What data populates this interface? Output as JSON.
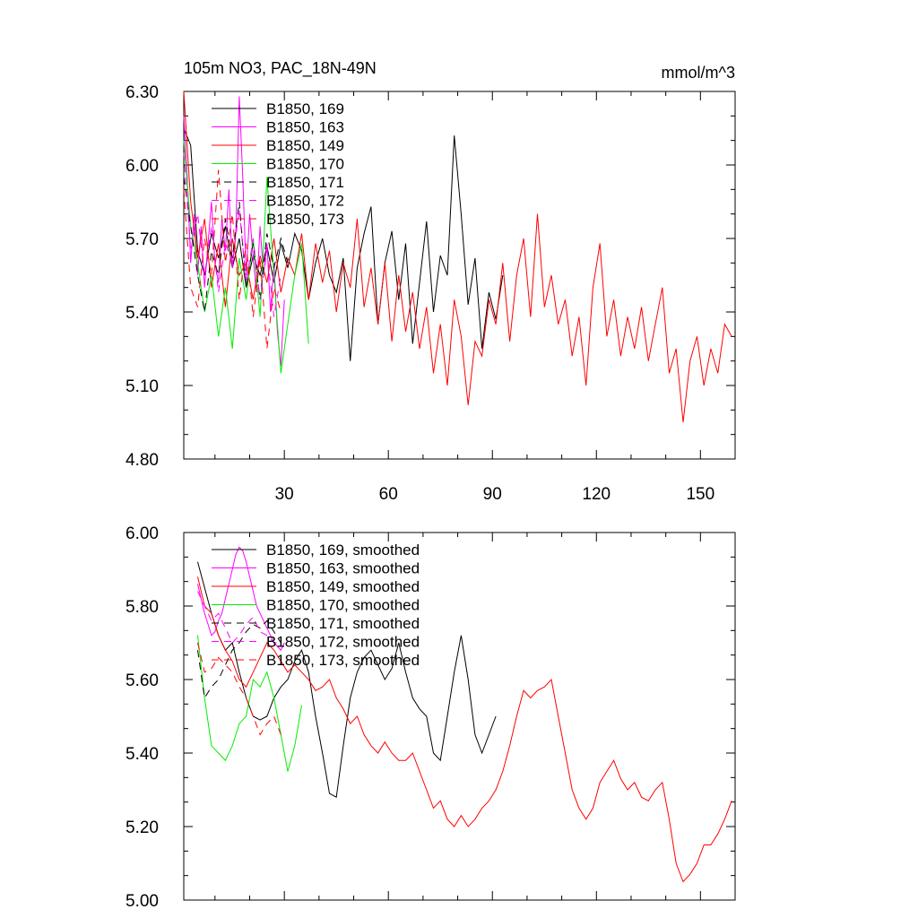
{
  "chart_data": [
    {
      "type": "line",
      "title": "105m NO3, PAC_18N-49N",
      "units": "mmol/m^3",
      "xlim": [
        1,
        160
      ],
      "ylim": [
        4.8,
        6.3
      ],
      "xticks": [
        30,
        60,
        90,
        120,
        150
      ],
      "xtick_labels": [
        "30",
        "60",
        "90",
        "120",
        "150"
      ],
      "yticks": [
        4.8,
        5.1,
        5.4,
        5.7,
        6.0,
        6.3
      ],
      "ytick_labels": [
        "4.80",
        "5.10",
        "5.40",
        "5.70",
        "6.00",
        "6.30"
      ],
      "legend": "top-left",
      "grid": false,
      "series": [
        {
          "name": "B1850, 169",
          "color": "#000000",
          "dash": "solid",
          "x": [
            1,
            3,
            5,
            7,
            9,
            11,
            13,
            15,
            17,
            19,
            21,
            23,
            25,
            27,
            29,
            31,
            33,
            35,
            37,
            39,
            41,
            43,
            45,
            47,
            49,
            51,
            53,
            55,
            57,
            59,
            61,
            63,
            65,
            67,
            69,
            71,
            73,
            75,
            77,
            79,
            81,
            83,
            85,
            87,
            89,
            91,
            93
          ],
          "y": [
            6.15,
            6.08,
            5.65,
            5.55,
            5.72,
            5.62,
            5.75,
            5.58,
            5.7,
            5.5,
            5.63,
            5.55,
            5.67,
            5.52,
            5.68,
            5.58,
            5.72,
            5.65,
            5.45,
            5.6,
            5.7,
            5.55,
            5.48,
            5.62,
            5.2,
            5.58,
            5.72,
            5.83,
            5.35,
            5.6,
            5.73,
            5.45,
            5.68,
            5.27,
            5.52,
            5.77,
            5.4,
            5.63,
            5.55,
            6.12,
            5.8,
            5.43,
            5.62,
            5.25,
            5.48,
            5.37,
            5.55
          ]
        },
        {
          "name": "B1850, 163",
          "color": "#ff00ff",
          "dash": "solid",
          "x": [
            1,
            2,
            3,
            4,
            5,
            6,
            7,
            8,
            9,
            10,
            11,
            12,
            13,
            14,
            15,
            16,
            17,
            18,
            19,
            20,
            21,
            22,
            23,
            24,
            25,
            26,
            27,
            28,
            29,
            30
          ],
          "y": [
            6.2,
            5.95,
            5.6,
            5.8,
            5.55,
            5.75,
            5.5,
            5.68,
            5.85,
            5.6,
            5.52,
            5.78,
            5.65,
            5.9,
            5.58,
            5.72,
            6.28,
            5.95,
            5.55,
            5.8,
            5.62,
            5.48,
            5.75,
            5.55,
            5.68,
            5.4,
            5.6,
            5.32,
            5.18,
            5.45
          ]
        },
        {
          "name": "B1850, 149",
          "color": "#ff0000",
          "dash": "solid",
          "x": [
            1,
            3,
            5,
            7,
            9,
            11,
            13,
            15,
            17,
            19,
            21,
            23,
            25,
            27,
            29,
            31,
            33,
            35,
            37,
            39,
            41,
            43,
            45,
            47,
            49,
            51,
            53,
            55,
            57,
            59,
            61,
            63,
            65,
            67,
            69,
            71,
            73,
            75,
            77,
            79,
            81,
            83,
            85,
            87,
            89,
            91,
            93,
            95,
            97,
            99,
            101,
            103,
            105,
            107,
            109,
            111,
            113,
            115,
            117,
            119,
            121,
            123,
            125,
            127,
            129,
            131,
            133,
            135,
            137,
            139,
            141,
            143,
            145,
            147,
            149,
            151,
            153,
            155,
            157,
            159
          ],
          "y": [
            6.3,
            5.85,
            5.62,
            5.78,
            5.5,
            5.68,
            5.42,
            5.7,
            5.55,
            5.6,
            5.45,
            5.63,
            5.52,
            5.7,
            5.48,
            5.62,
            5.55,
            5.72,
            5.45,
            5.68,
            5.52,
            5.65,
            5.4,
            5.6,
            5.5,
            5.78,
            5.42,
            5.58,
            5.35,
            5.6,
            5.28,
            5.55,
            5.32,
            5.48,
            5.25,
            5.42,
            5.15,
            5.35,
            5.1,
            5.45,
            5.3,
            5.02,
            5.28,
            5.22,
            5.45,
            5.35,
            5.6,
            5.28,
            5.55,
            5.7,
            5.38,
            5.8,
            5.42,
            5.55,
            5.35,
            5.45,
            5.22,
            5.38,
            5.1,
            5.5,
            5.68,
            5.3,
            5.45,
            5.22,
            5.38,
            5.25,
            5.42,
            5.2,
            5.35,
            5.5,
            5.15,
            5.25,
            4.95,
            5.2,
            5.3,
            5.1,
            5.25,
            5.15,
            5.35,
            5.3
          ]
        },
        {
          "name": "B1850, 170",
          "color": "#00ee00",
          "dash": "solid",
          "x": [
            1,
            3,
            5,
            7,
            9,
            11,
            13,
            15,
            17,
            19,
            21,
            23,
            25,
            27,
            29,
            31,
            33,
            35,
            37
          ],
          "y": [
            6.1,
            5.75,
            5.6,
            5.4,
            5.55,
            5.3,
            5.5,
            5.25,
            5.62,
            5.45,
            5.7,
            5.38,
            5.95,
            5.55,
            5.15,
            5.35,
            5.55,
            5.68,
            5.27
          ]
        },
        {
          "name": "B1850, 171",
          "color": "#000000",
          "dash": "8,6",
          "x": [
            1,
            3,
            5,
            7,
            9,
            11,
            13,
            15,
            17,
            19,
            21,
            23,
            25,
            27,
            29,
            31
          ],
          "y": [
            5.95,
            5.75,
            5.55,
            5.4,
            5.65,
            5.55,
            5.78,
            5.62,
            5.85,
            5.5,
            5.68,
            5.45,
            5.72,
            5.58,
            5.7,
            5.6
          ]
        },
        {
          "name": "B1850, 172",
          "color": "#ff00ff",
          "dash": "8,6",
          "x": [
            1,
            3,
            5,
            7,
            9,
            11,
            13,
            15,
            17,
            19,
            21,
            23,
            25,
            27,
            29
          ],
          "y": [
            6.05,
            5.65,
            5.8,
            5.55,
            5.75,
            5.48,
            5.68,
            5.6,
            5.82,
            5.52,
            5.7,
            5.45,
            5.65,
            5.38,
            5.55
          ]
        },
        {
          "name": "B1850, 173",
          "color": "#ff0000",
          "dash": "8,6",
          "x": [
            1,
            3,
            5,
            7,
            9,
            11,
            13,
            15,
            17,
            19,
            21,
            23,
            25,
            27,
            29
          ],
          "y": [
            5.9,
            5.5,
            5.42,
            5.7,
            5.55,
            5.98,
            5.6,
            5.8,
            5.45,
            5.68,
            5.38,
            5.62,
            5.25,
            5.5,
            5.4
          ]
        }
      ]
    },
    {
      "type": "line",
      "xlim": [
        1,
        160
      ],
      "ylim": [
        5.0,
        6.0
      ],
      "xticks": [
        30,
        60,
        90,
        120,
        150
      ],
      "yticks": [
        5.0,
        5.2,
        5.4,
        5.6,
        5.8,
        6.0
      ],
      "ytick_labels": [
        "5.00",
        "5.20",
        "5.40",
        "5.60",
        "5.80",
        "6.00"
      ],
      "legend": "top-left",
      "grid": false,
      "series": [
        {
          "name": "B1850, 169, smoothed",
          "color": "#000000",
          "dash": "solid",
          "x": [
            5,
            7,
            9,
            11,
            13,
            15,
            17,
            19,
            21,
            23,
            25,
            27,
            29,
            31,
            33,
            35,
            37,
            39,
            41,
            43,
            45,
            47,
            49,
            51,
            53,
            55,
            57,
            59,
            61,
            63,
            65,
            67,
            69,
            71,
            73,
            75,
            77,
            79,
            81,
            83,
            85,
            87,
            89,
            91
          ],
          "y": [
            5.92,
            5.85,
            5.78,
            5.72,
            5.68,
            5.7,
            5.62,
            5.55,
            5.5,
            5.49,
            5.5,
            5.55,
            5.58,
            5.6,
            5.65,
            5.68,
            5.62,
            5.5,
            5.4,
            5.29,
            5.28,
            5.42,
            5.55,
            5.62,
            5.66,
            5.68,
            5.64,
            5.6,
            5.63,
            5.7,
            5.62,
            5.55,
            5.52,
            5.5,
            5.4,
            5.38,
            5.5,
            5.62,
            5.72,
            5.6,
            5.45,
            5.4,
            5.45,
            5.5
          ]
        },
        {
          "name": "B1850, 163, smoothed",
          "color": "#ff00ff",
          "dash": "solid",
          "x": [
            5,
            6,
            7,
            8,
            9,
            10,
            11,
            12,
            13,
            14,
            15,
            16,
            17,
            18,
            19,
            20,
            21,
            22,
            23,
            24,
            25,
            26,
            27,
            28,
            29,
            30
          ],
          "y": [
            5.86,
            5.82,
            5.78,
            5.75,
            5.72,
            5.73,
            5.76,
            5.78,
            5.82,
            5.86,
            5.9,
            5.94,
            5.96,
            5.95,
            5.92,
            5.88,
            5.84,
            5.8,
            5.78,
            5.76,
            5.74,
            5.72,
            5.7,
            5.69,
            5.68,
            5.7
          ]
        },
        {
          "name": "B1850, 149, smoothed",
          "color": "#ff0000",
          "dash": "solid",
          "x": [
            5,
            7,
            9,
            11,
            13,
            15,
            17,
            19,
            21,
            23,
            25,
            27,
            29,
            31,
            33,
            35,
            37,
            39,
            41,
            43,
            45,
            47,
            49,
            51,
            53,
            55,
            57,
            59,
            61,
            63,
            65,
            67,
            69,
            71,
            73,
            75,
            77,
            79,
            81,
            83,
            85,
            87,
            89,
            91,
            93,
            95,
            97,
            99,
            101,
            103,
            105,
            107,
            109,
            111,
            113,
            115,
            117,
            119,
            121,
            123,
            125,
            127,
            129,
            131,
            133,
            135,
            137,
            139,
            141,
            143,
            145,
            147,
            149,
            151,
            153,
            155,
            157,
            159
          ],
          "y": [
            5.88,
            5.8,
            5.78,
            5.72,
            5.68,
            5.65,
            5.6,
            5.58,
            5.62,
            5.66,
            5.7,
            5.68,
            5.65,
            5.62,
            5.64,
            5.62,
            5.6,
            5.57,
            5.58,
            5.6,
            5.55,
            5.52,
            5.48,
            5.5,
            5.45,
            5.42,
            5.4,
            5.43,
            5.4,
            5.38,
            5.38,
            5.4,
            5.35,
            5.3,
            5.25,
            5.27,
            5.22,
            5.2,
            5.23,
            5.2,
            5.22,
            5.25,
            5.27,
            5.3,
            5.35,
            5.42,
            5.5,
            5.57,
            5.55,
            5.57,
            5.58,
            5.6,
            5.5,
            5.4,
            5.3,
            5.25,
            5.22,
            5.25,
            5.32,
            5.35,
            5.38,
            5.33,
            5.3,
            5.32,
            5.28,
            5.27,
            5.3,
            5.32,
            5.22,
            5.1,
            5.05,
            5.07,
            5.1,
            5.15,
            5.15,
            5.18,
            5.22,
            5.27
          ]
        },
        {
          "name": "B1850, 170, smoothed",
          "color": "#00ee00",
          "dash": "solid",
          "x": [
            5,
            7,
            9,
            11,
            13,
            15,
            17,
            19,
            21,
            23,
            25,
            27,
            29,
            31,
            33,
            35
          ],
          "y": [
            5.72,
            5.55,
            5.42,
            5.4,
            5.38,
            5.42,
            5.48,
            5.5,
            5.6,
            5.58,
            5.62,
            5.55,
            5.45,
            5.35,
            5.42,
            5.53
          ]
        },
        {
          "name": "B1850, 171, smoothed",
          "color": "#000000",
          "dash": "8,6",
          "x": [
            5,
            7,
            9,
            11,
            13,
            15,
            17,
            19,
            21,
            23,
            25,
            27,
            29
          ],
          "y": [
            5.68,
            5.55,
            5.58,
            5.6,
            5.64,
            5.68,
            5.7,
            5.73,
            5.75,
            5.74,
            5.76,
            5.73,
            5.7
          ]
        },
        {
          "name": "B1850, 172, smoothed",
          "color": "#ff00ff",
          "dash": "8,6",
          "x": [
            5,
            7,
            9,
            11,
            13,
            15,
            17,
            19,
            21,
            23,
            25,
            27,
            29
          ],
          "y": [
            5.84,
            5.8,
            5.76,
            5.78,
            5.74,
            5.7,
            5.72,
            5.75,
            5.77,
            5.73,
            5.72,
            5.7,
            5.7
          ]
        },
        {
          "name": "B1850, 173, smoothed",
          "color": "#ff0000",
          "dash": "8,6",
          "x": [
            5,
            7,
            9,
            11,
            13,
            15,
            17,
            19,
            21,
            23,
            25,
            27,
            29
          ],
          "y": [
            5.7,
            5.62,
            5.63,
            5.66,
            5.64,
            5.62,
            5.58,
            5.55,
            5.5,
            5.45,
            5.48,
            5.5,
            5.45
          ]
        }
      ]
    }
  ]
}
